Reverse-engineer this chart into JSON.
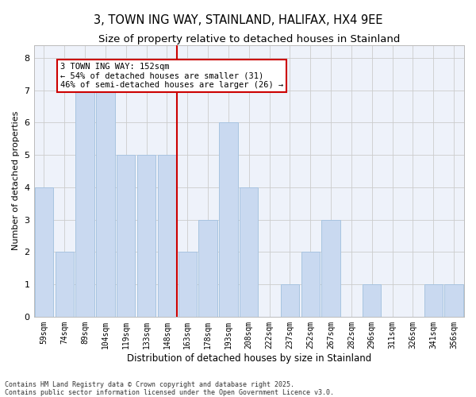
{
  "title": "3, TOWN ING WAY, STAINLAND, HALIFAX, HX4 9EE",
  "subtitle": "Size of property relative to detached houses in Stainland",
  "xlabel": "Distribution of detached houses by size in Stainland",
  "ylabel": "Number of detached properties",
  "categories": [
    "59sqm",
    "74sqm",
    "89sqm",
    "104sqm",
    "119sqm",
    "133sqm",
    "148sqm",
    "163sqm",
    "178sqm",
    "193sqm",
    "208sqm",
    "222sqm",
    "237sqm",
    "252sqm",
    "267sqm",
    "282sqm",
    "296sqm",
    "311sqm",
    "326sqm",
    "341sqm",
    "356sqm"
  ],
  "values": [
    4,
    2,
    7,
    7,
    5,
    5,
    5,
    2,
    3,
    6,
    4,
    0,
    1,
    2,
    3,
    0,
    1,
    0,
    0,
    1,
    1
  ],
  "bar_color": "#c9d9f0",
  "bar_edge_color": "#a8c4e0",
  "grid_color": "#cccccc",
  "background_color": "#eef2fa",
  "vline_color": "#cc0000",
  "vline_x_index": 6.5,
  "annotation_text": "3 TOWN ING WAY: 152sqm\n← 54% of detached houses are smaller (31)\n46% of semi-detached houses are larger (26) →",
  "annotation_box_color": "#cc0000",
  "ylim": [
    0,
    8.4
  ],
  "yticks": [
    0,
    1,
    2,
    3,
    4,
    5,
    6,
    7,
    8
  ],
  "footer": "Contains HM Land Registry data © Crown copyright and database right 2025.\nContains public sector information licensed under the Open Government Licence v3.0.",
  "title_fontsize": 10.5,
  "subtitle_fontsize": 9.5,
  "xlabel_fontsize": 8.5,
  "ylabel_fontsize": 8,
  "tick_fontsize": 7,
  "annot_fontsize": 7.5,
  "footer_fontsize": 6
}
